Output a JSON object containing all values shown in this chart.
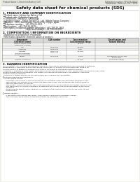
{
  "bg_color": "#f0efe8",
  "page_bg": "#ffffff",
  "title": "Safety data sheet for chemical products (SDS)",
  "header_left": "Product Name: Lithium Ion Battery Cell",
  "header_right_line1": "Publication number: RP-SDS-00010",
  "header_right_line2": "Established / Revision: Dec.7.2016",
  "section1_title": "1. PRODUCT AND COMPANY IDENTIFICATION",
  "section1_items": [
    "・Product name: Lithium Ion Battery Cell",
    "・Product code: Cylindrical-type cell",
    "   (UR18650U, UR18650L, UR18650A)",
    "・Company name:   Sanyo Electric Co., Ltd., Mobile Energy Company",
    "・Address:   2001, Kamikosaka, Sumoto-City, Hyogo, Japan",
    "・Telephone number:   +81-799-26-4111",
    "・Fax number:   +81-799-26-4129",
    "・Emergency telephone number (Weekday): +81-799-26-2662",
    "                                    (Night and holiday): +81-799-26-4101"
  ],
  "section2_title": "2. COMPOSITION / INFORMATION ON INGREDIENTS",
  "section2_subtitle": "・Substance or preparation: Preparation",
  "section2_sub2": "・Information about the chemical nature of product:",
  "table_headers": [
    "Component\n(Chemical name)",
    "CAS number",
    "Concentration /\nConcentration range",
    "Classification and\nhazard labeling"
  ],
  "table_rows": [
    [
      "Lithium cobalt oxide\n(LiMnxCo1-x O2(s))",
      "-",
      "30-60%",
      "-"
    ],
    [
      "Iron",
      "7439-89-6",
      "10-20%",
      "-"
    ],
    [
      "Aluminum",
      "7429-90-5",
      "2-8%",
      "-"
    ],
    [
      "Graphite\n(Flake of graphite)\n(Artificial graphite)",
      "7782-42-5\n7782-42-5",
      "10-20%",
      "-"
    ],
    [
      "Copper",
      "7440-50-8",
      "5-10%",
      "Sensitization of the skin\ngroup No.2"
    ],
    [
      "Organic electrolyte",
      "-",
      "10-20%",
      "Flammable liquid"
    ]
  ],
  "section3_title": "3. HAZARDS IDENTIFICATION",
  "section3_para1": [
    "For the battery can, chemical materials are stored in a hermetically sealed metal case, designed to withstand",
    "temperatures or pressures encountered during normal use. As a result, during normal use, there is no",
    "physical danger of ignition or explosion and there is no danger of hazardous materials leakage.",
    "  However, if exposed to a fire, added mechanical shocks, decompression, or heat, electro-chemical reactions may cause",
    "the gas release vent to be operated. The battery cell case will be breached or fire patterns. Hazardous",
    "materials may be released.",
    "  Moreover, if heated strongly by the surrounding fire, solid gas may be emitted."
  ],
  "section3_hazards": [
    "・Most important hazard and effects:",
    "   Human health effects:",
    "      Inhalation: The release of the electrolyte has an anesthetic action and stimulates respiratory tract.",
    "      Skin contact: The release of the electrolyte stimulates a skin. The electrolyte skin contact causes a",
    "      sore and stimulation on the skin.",
    "      Eye contact: The release of the electrolyte stimulates eyes. The electrolyte eye contact causes a sore",
    "      and stimulation on the eye. Especially, a substance that causes a strong inflammation of the eye is",
    "      contained.",
    "      Environmental effects: Since a battery cell remains in the environment, do not throw out it into the",
    "      environment.",
    "",
    "・Specific hazards:",
    "      If the electrolyte contacts with water, it will generate detrimental hydrogen fluoride.",
    "      Since the used electrolyte is a flammable liquid, do not bring close to fire."
  ]
}
